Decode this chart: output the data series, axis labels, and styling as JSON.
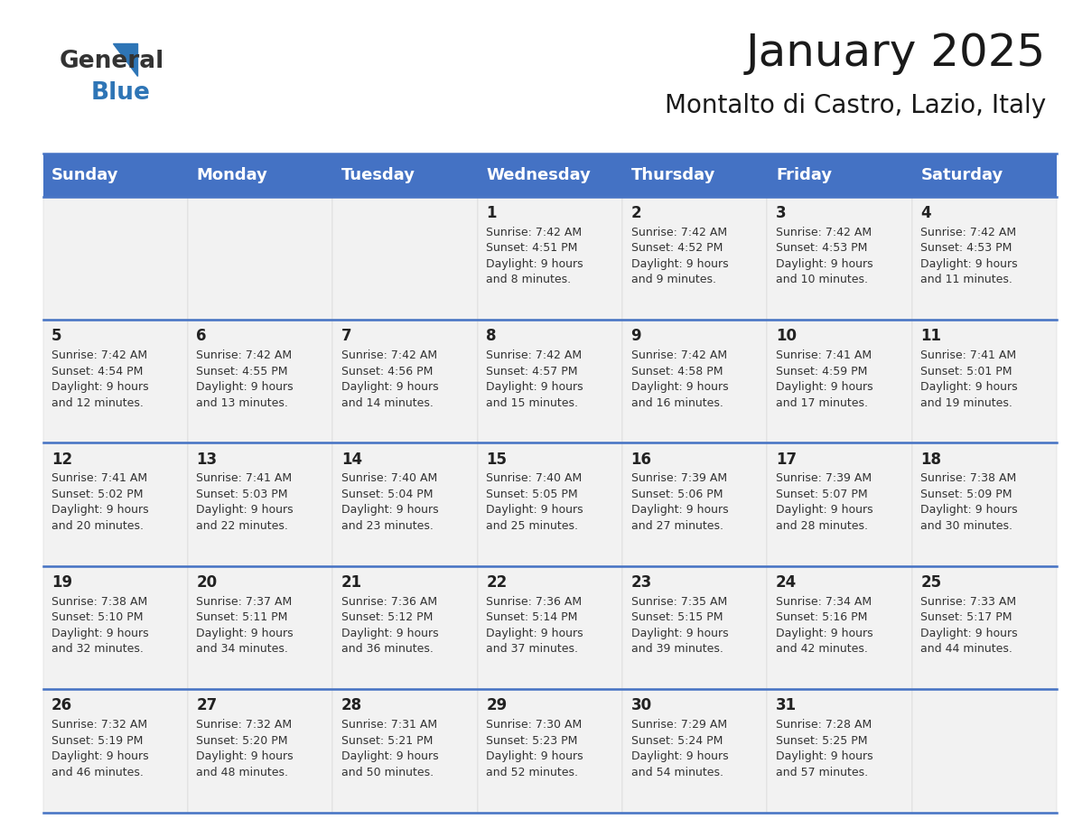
{
  "title": "January 2025",
  "subtitle": "Montalto di Castro, Lazio, Italy",
  "header_bg": "#4472C4",
  "header_text_color": "#FFFFFF",
  "cell_bg_light": "#F2F2F2",
  "cell_bg_white": "#FFFFFF",
  "border_color": "#4472C4",
  "days_of_week": [
    "Sunday",
    "Monday",
    "Tuesday",
    "Wednesday",
    "Thursday",
    "Friday",
    "Saturday"
  ],
  "weeks": [
    [
      {
        "day": "",
        "info": ""
      },
      {
        "day": "",
        "info": ""
      },
      {
        "day": "",
        "info": ""
      },
      {
        "day": "1",
        "info": "Sunrise: 7:42 AM\nSunset: 4:51 PM\nDaylight: 9 hours\nand 8 minutes."
      },
      {
        "day": "2",
        "info": "Sunrise: 7:42 AM\nSunset: 4:52 PM\nDaylight: 9 hours\nand 9 minutes."
      },
      {
        "day": "3",
        "info": "Sunrise: 7:42 AM\nSunset: 4:53 PM\nDaylight: 9 hours\nand 10 minutes."
      },
      {
        "day": "4",
        "info": "Sunrise: 7:42 AM\nSunset: 4:53 PM\nDaylight: 9 hours\nand 11 minutes."
      }
    ],
    [
      {
        "day": "5",
        "info": "Sunrise: 7:42 AM\nSunset: 4:54 PM\nDaylight: 9 hours\nand 12 minutes."
      },
      {
        "day": "6",
        "info": "Sunrise: 7:42 AM\nSunset: 4:55 PM\nDaylight: 9 hours\nand 13 minutes."
      },
      {
        "day": "7",
        "info": "Sunrise: 7:42 AM\nSunset: 4:56 PM\nDaylight: 9 hours\nand 14 minutes."
      },
      {
        "day": "8",
        "info": "Sunrise: 7:42 AM\nSunset: 4:57 PM\nDaylight: 9 hours\nand 15 minutes."
      },
      {
        "day": "9",
        "info": "Sunrise: 7:42 AM\nSunset: 4:58 PM\nDaylight: 9 hours\nand 16 minutes."
      },
      {
        "day": "10",
        "info": "Sunrise: 7:41 AM\nSunset: 4:59 PM\nDaylight: 9 hours\nand 17 minutes."
      },
      {
        "day": "11",
        "info": "Sunrise: 7:41 AM\nSunset: 5:01 PM\nDaylight: 9 hours\nand 19 minutes."
      }
    ],
    [
      {
        "day": "12",
        "info": "Sunrise: 7:41 AM\nSunset: 5:02 PM\nDaylight: 9 hours\nand 20 minutes."
      },
      {
        "day": "13",
        "info": "Sunrise: 7:41 AM\nSunset: 5:03 PM\nDaylight: 9 hours\nand 22 minutes."
      },
      {
        "day": "14",
        "info": "Sunrise: 7:40 AM\nSunset: 5:04 PM\nDaylight: 9 hours\nand 23 minutes."
      },
      {
        "day": "15",
        "info": "Sunrise: 7:40 AM\nSunset: 5:05 PM\nDaylight: 9 hours\nand 25 minutes."
      },
      {
        "day": "16",
        "info": "Sunrise: 7:39 AM\nSunset: 5:06 PM\nDaylight: 9 hours\nand 27 minutes."
      },
      {
        "day": "17",
        "info": "Sunrise: 7:39 AM\nSunset: 5:07 PM\nDaylight: 9 hours\nand 28 minutes."
      },
      {
        "day": "18",
        "info": "Sunrise: 7:38 AM\nSunset: 5:09 PM\nDaylight: 9 hours\nand 30 minutes."
      }
    ],
    [
      {
        "day": "19",
        "info": "Sunrise: 7:38 AM\nSunset: 5:10 PM\nDaylight: 9 hours\nand 32 minutes."
      },
      {
        "day": "20",
        "info": "Sunrise: 7:37 AM\nSunset: 5:11 PM\nDaylight: 9 hours\nand 34 minutes."
      },
      {
        "day": "21",
        "info": "Sunrise: 7:36 AM\nSunset: 5:12 PM\nDaylight: 9 hours\nand 36 minutes."
      },
      {
        "day": "22",
        "info": "Sunrise: 7:36 AM\nSunset: 5:14 PM\nDaylight: 9 hours\nand 37 minutes."
      },
      {
        "day": "23",
        "info": "Sunrise: 7:35 AM\nSunset: 5:15 PM\nDaylight: 9 hours\nand 39 minutes."
      },
      {
        "day": "24",
        "info": "Sunrise: 7:34 AM\nSunset: 5:16 PM\nDaylight: 9 hours\nand 42 minutes."
      },
      {
        "day": "25",
        "info": "Sunrise: 7:33 AM\nSunset: 5:17 PM\nDaylight: 9 hours\nand 44 minutes."
      }
    ],
    [
      {
        "day": "26",
        "info": "Sunrise: 7:32 AM\nSunset: 5:19 PM\nDaylight: 9 hours\nand 46 minutes."
      },
      {
        "day": "27",
        "info": "Sunrise: 7:32 AM\nSunset: 5:20 PM\nDaylight: 9 hours\nand 48 minutes."
      },
      {
        "day": "28",
        "info": "Sunrise: 7:31 AM\nSunset: 5:21 PM\nDaylight: 9 hours\nand 50 minutes."
      },
      {
        "day": "29",
        "info": "Sunrise: 7:30 AM\nSunset: 5:23 PM\nDaylight: 9 hours\nand 52 minutes."
      },
      {
        "day": "30",
        "info": "Sunrise: 7:29 AM\nSunset: 5:24 PM\nDaylight: 9 hours\nand 54 minutes."
      },
      {
        "day": "31",
        "info": "Sunrise: 7:28 AM\nSunset: 5:25 PM\nDaylight: 9 hours\nand 57 minutes."
      },
      {
        "day": "",
        "info": ""
      }
    ]
  ],
  "logo_general_color": "#333333",
  "logo_blue_color": "#2E75B6",
  "title_fontsize": 36,
  "subtitle_fontsize": 20,
  "header_fontsize": 13,
  "day_num_fontsize": 12,
  "info_fontsize": 9
}
